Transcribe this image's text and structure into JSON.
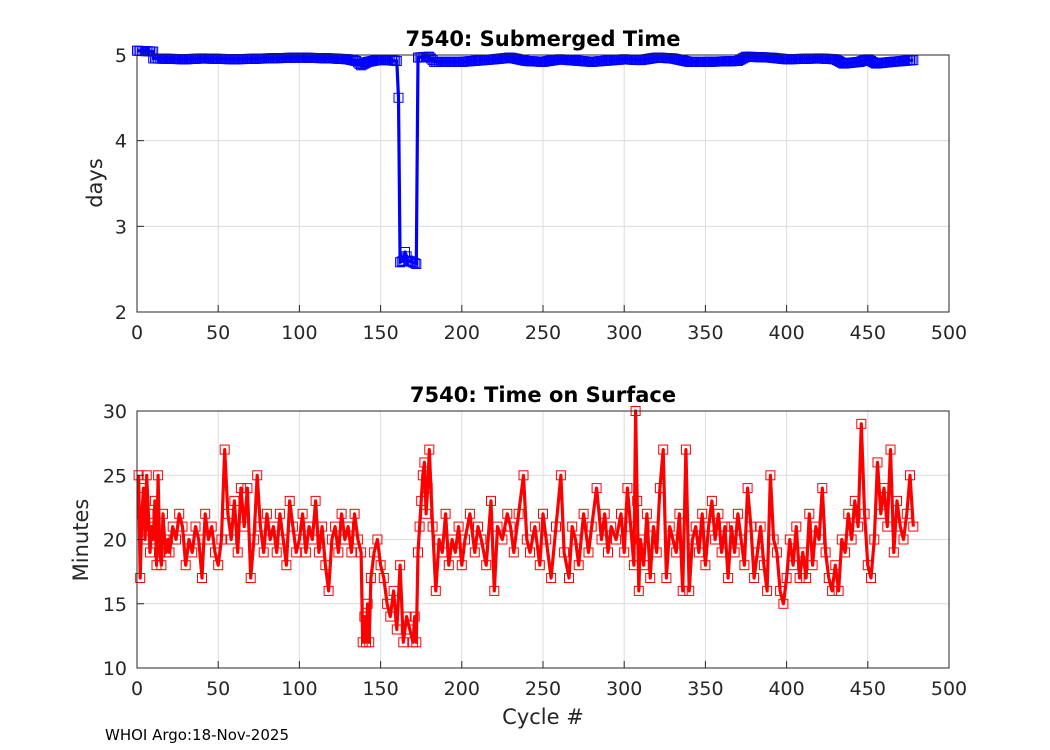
{
  "footer": "WHOI Argo:18-Nov-2025",
  "chart_data": [
    {
      "type": "line",
      "title": "7540: Submerged Time",
      "xlabel": "",
      "ylabel": "days",
      "xlim": [
        0,
        500
      ],
      "ylim": [
        2,
        5
      ],
      "xticks": [
        "0",
        "50",
        "100",
        "150",
        "200",
        "250",
        "300",
        "350",
        "400",
        "450",
        "500"
      ],
      "yticks": [
        "2",
        "3",
        "4",
        "5"
      ],
      "grid": true,
      "marker": "square",
      "color": "#0000ff",
      "segments": [
        [
          0,
          5.05
        ],
        [
          10,
          5.04
        ],
        [
          10,
          4.96
        ],
        [
          30,
          4.95
        ],
        [
          40,
          4.96
        ],
        [
          60,
          4.95
        ],
        [
          80,
          4.96
        ],
        [
          100,
          4.97
        ],
        [
          120,
          4.96
        ],
        [
          130,
          4.95
        ],
        [
          135,
          4.93
        ],
        [
          138,
          4.88
        ],
        [
          142,
          4.92
        ],
        [
          148,
          4.94
        ],
        [
          155,
          4.94
        ],
        [
          160,
          4.93
        ],
        [
          161,
          4.5
        ],
        [
          162,
          2.58
        ],
        [
          164,
          2.6
        ],
        [
          165,
          2.7
        ],
        [
          167,
          2.6
        ],
        [
          170,
          2.58
        ],
        [
          172,
          2.56
        ],
        [
          173,
          4.97
        ],
        [
          180,
          4.98
        ],
        [
          183,
          4.92
        ],
        [
          200,
          4.92
        ],
        [
          220,
          4.95
        ],
        [
          230,
          4.97
        ],
        [
          240,
          4.93
        ],
        [
          250,
          4.92
        ],
        [
          260,
          4.95
        ],
        [
          280,
          4.92
        ],
        [
          300,
          4.95
        ],
        [
          310,
          4.94
        ],
        [
          320,
          4.97
        ],
        [
          330,
          4.96
        ],
        [
          340,
          4.92
        ],
        [
          350,
          4.92
        ],
        [
          370,
          4.93
        ],
        [
          375,
          4.98
        ],
        [
          390,
          4.97
        ],
        [
          400,
          4.95
        ],
        [
          420,
          4.96
        ],
        [
          430,
          4.95
        ],
        [
          435,
          4.9
        ],
        [
          445,
          4.92
        ],
        [
          450,
          4.95
        ],
        [
          455,
          4.9
        ],
        [
          465,
          4.92
        ],
        [
          478,
          4.94
        ]
      ]
    },
    {
      "type": "line",
      "title": "7540: Time on Surface",
      "xlabel": "Cycle #",
      "ylabel": "Minutes",
      "xlim": [
        0,
        500
      ],
      "ylim": [
        10,
        30
      ],
      "xticks": [
        "0",
        "50",
        "100",
        "150",
        "200",
        "250",
        "300",
        "350",
        "400",
        "450",
        "500"
      ],
      "yticks": [
        "10",
        "15",
        "20",
        "25",
        "30"
      ],
      "grid": true,
      "marker": "square",
      "color": "#ff0000",
      "points": [
        [
          1,
          25
        ],
        [
          2,
          17
        ],
        [
          3,
          22
        ],
        [
          4,
          24
        ],
        [
          5,
          20
        ],
        [
          6,
          25
        ],
        [
          7,
          22
        ],
        [
          8,
          19
        ],
        [
          9,
          21
        ],
        [
          10,
          20
        ],
        [
          11,
          23
        ],
        [
          12,
          18
        ],
        [
          13,
          25
        ],
        [
          14,
          19
        ],
        [
          15,
          18
        ],
        [
          16,
          22
        ],
        [
          17,
          20
        ],
        [
          18,
          19
        ],
        [
          19,
          20
        ],
        [
          20,
          19
        ],
        [
          22,
          21
        ],
        [
          24,
          20
        ],
        [
          26,
          22
        ],
        [
          28,
          21
        ],
        [
          30,
          18
        ],
        [
          32,
          20
        ],
        [
          34,
          19
        ],
        [
          36,
          21
        ],
        [
          38,
          20
        ],
        [
          40,
          17
        ],
        [
          42,
          22
        ],
        [
          44,
          20
        ],
        [
          46,
          21
        ],
        [
          48,
          19
        ],
        [
          50,
          18
        ],
        [
          52,
          20
        ],
        [
          54,
          27
        ],
        [
          56,
          22
        ],
        [
          58,
          20
        ],
        [
          60,
          23
        ],
        [
          62,
          19
        ],
        [
          64,
          24
        ],
        [
          66,
          21
        ],
        [
          68,
          24
        ],
        [
          70,
          17
        ],
        [
          72,
          20
        ],
        [
          74,
          25
        ],
        [
          76,
          21
        ],
        [
          78,
          19
        ],
        [
          80,
          22
        ],
        [
          82,
          20
        ],
        [
          84,
          21
        ],
        [
          86,
          19
        ],
        [
          88,
          22
        ],
        [
          90,
          20
        ],
        [
          92,
          18
        ],
        [
          94,
          23
        ],
        [
          96,
          21
        ],
        [
          98,
          19
        ],
        [
          100,
          20
        ],
        [
          102,
          22
        ],
        [
          104,
          19
        ],
        [
          106,
          21
        ],
        [
          108,
          20
        ],
        [
          110,
          23
        ],
        [
          112,
          19
        ],
        [
          114,
          21
        ],
        [
          116,
          18
        ],
        [
          118,
          16
        ],
        [
          120,
          20
        ],
        [
          122,
          21
        ],
        [
          124,
          19
        ],
        [
          126,
          22
        ],
        [
          128,
          20
        ],
        [
          130,
          21
        ],
        [
          132,
          19
        ],
        [
          134,
          22
        ],
        [
          136,
          20
        ],
        [
          138,
          19
        ],
        [
          139,
          12
        ],
        [
          140,
          14
        ],
        [
          141,
          12
        ],
        [
          142,
          15
        ],
        [
          143,
          12
        ],
        [
          144,
          17
        ],
        [
          146,
          19
        ],
        [
          148,
          20
        ],
        [
          150,
          18
        ],
        [
          152,
          17
        ],
        [
          154,
          15
        ],
        [
          156,
          14
        ],
        [
          158,
          16
        ],
        [
          160,
          13
        ],
        [
          162,
          18
        ],
        [
          164,
          12
        ],
        [
          166,
          14
        ],
        [
          168,
          13
        ],
        [
          170,
          12
        ],
        [
          171,
          14
        ],
        [
          172,
          12
        ],
        [
          173,
          19
        ],
        [
          174,
          21
        ],
        [
          175,
          23
        ],
        [
          176,
          25
        ],
        [
          177,
          26
        ],
        [
          178,
          22
        ],
        [
          179,
          24
        ],
        [
          180,
          27
        ],
        [
          182,
          21
        ],
        [
          184,
          16
        ],
        [
          186,
          20
        ],
        [
          188,
          19
        ],
        [
          190,
          22
        ],
        [
          192,
          18
        ],
        [
          194,
          20
        ],
        [
          196,
          19
        ],
        [
          198,
          21
        ],
        [
          200,
          18
        ],
        [
          202,
          20
        ],
        [
          205,
          22
        ],
        [
          208,
          19
        ],
        [
          210,
          21
        ],
        [
          212,
          20
        ],
        [
          215,
          18
        ],
        [
          218,
          23
        ],
        [
          220,
          16
        ],
        [
          222,
          21
        ],
        [
          225,
          20
        ],
        [
          228,
          22
        ],
        [
          230,
          21
        ],
        [
          232,
          19
        ],
        [
          235,
          22
        ],
        [
          238,
          25
        ],
        [
          240,
          20
        ],
        [
          242,
          19
        ],
        [
          245,
          21
        ],
        [
          248,
          18
        ],
        [
          250,
          22
        ],
        [
          252,
          20
        ],
        [
          255,
          17
        ],
        [
          258,
          21
        ],
        [
          261,
          25
        ],
        [
          263,
          19
        ],
        [
          266,
          17
        ],
        [
          268,
          21
        ],
        [
          270,
          20
        ],
        [
          272,
          18
        ],
        [
          275,
          22
        ],
        [
          278,
          19
        ],
        [
          280,
          21
        ],
        [
          283,
          24
        ],
        [
          286,
          20
        ],
        [
          288,
          22
        ],
        [
          290,
          19
        ],
        [
          292,
          21
        ],
        [
          295,
          20
        ],
        [
          298,
          22
        ],
        [
          300,
          19
        ],
        [
          302,
          24
        ],
        [
          304,
          21
        ],
        [
          306,
          18
        ],
        [
          307,
          30
        ],
        [
          308,
          23
        ],
        [
          309,
          16
        ],
        [
          310,
          20
        ],
        [
          312,
          18
        ],
        [
          314,
          22
        ],
        [
          316,
          17
        ],
        [
          318,
          21
        ],
        [
          320,
          19
        ],
        [
          322,
          24
        ],
        [
          324,
          27
        ],
        [
          326,
          17
        ],
        [
          328,
          21
        ],
        [
          330,
          20
        ],
        [
          332,
          19
        ],
        [
          334,
          22
        ],
        [
          336,
          16
        ],
        [
          338,
          27
        ],
        [
          340,
          16
        ],
        [
          342,
          20
        ],
        [
          344,
          21
        ],
        [
          346,
          19
        ],
        [
          348,
          22
        ],
        [
          350,
          18
        ],
        [
          352,
          21
        ],
        [
          354,
          23
        ],
        [
          356,
          20
        ],
        [
          358,
          22
        ],
        [
          360,
          19
        ],
        [
          362,
          21
        ],
        [
          364,
          17
        ],
        [
          366,
          21
        ],
        [
          368,
          19
        ],
        [
          370,
          22
        ],
        [
          372,
          20
        ],
        [
          374,
          18
        ],
        [
          376,
          24
        ],
        [
          378,
          21
        ],
        [
          380,
          17
        ],
        [
          382,
          19
        ],
        [
          384,
          21
        ],
        [
          386,
          18
        ],
        [
          388,
          16
        ],
        [
          390,
          25
        ],
        [
          392,
          20
        ],
        [
          394,
          19
        ],
        [
          396,
          16
        ],
        [
          398,
          15
        ],
        [
          400,
          17
        ],
        [
          402,
          20
        ],
        [
          404,
          18
        ],
        [
          406,
          21
        ],
        [
          408,
          17
        ],
        [
          410,
          19
        ],
        [
          412,
          17
        ],
        [
          414,
          22
        ],
        [
          416,
          18
        ],
        [
          418,
          21
        ],
        [
          420,
          20
        ],
        [
          422,
          24
        ],
        [
          424,
          19
        ],
        [
          426,
          17
        ],
        [
          428,
          16
        ],
        [
          430,
          18
        ],
        [
          432,
          16
        ],
        [
          434,
          20
        ],
        [
          436,
          19
        ],
        [
          438,
          22
        ],
        [
          440,
          20
        ],
        [
          442,
          23
        ],
        [
          444,
          21
        ],
        [
          446,
          29
        ],
        [
          448,
          22
        ],
        [
          450,
          18
        ],
        [
          452,
          17
        ],
        [
          454,
          20
        ],
        [
          456,
          26
        ],
        [
          458,
          22
        ],
        [
          460,
          24
        ],
        [
          462,
          21
        ],
        [
          464,
          27
        ],
        [
          466,
          19
        ],
        [
          468,
          23
        ],
        [
          470,
          21
        ],
        [
          472,
          20
        ],
        [
          474,
          22
        ],
        [
          476,
          25
        ],
        [
          478,
          21
        ]
      ]
    }
  ]
}
